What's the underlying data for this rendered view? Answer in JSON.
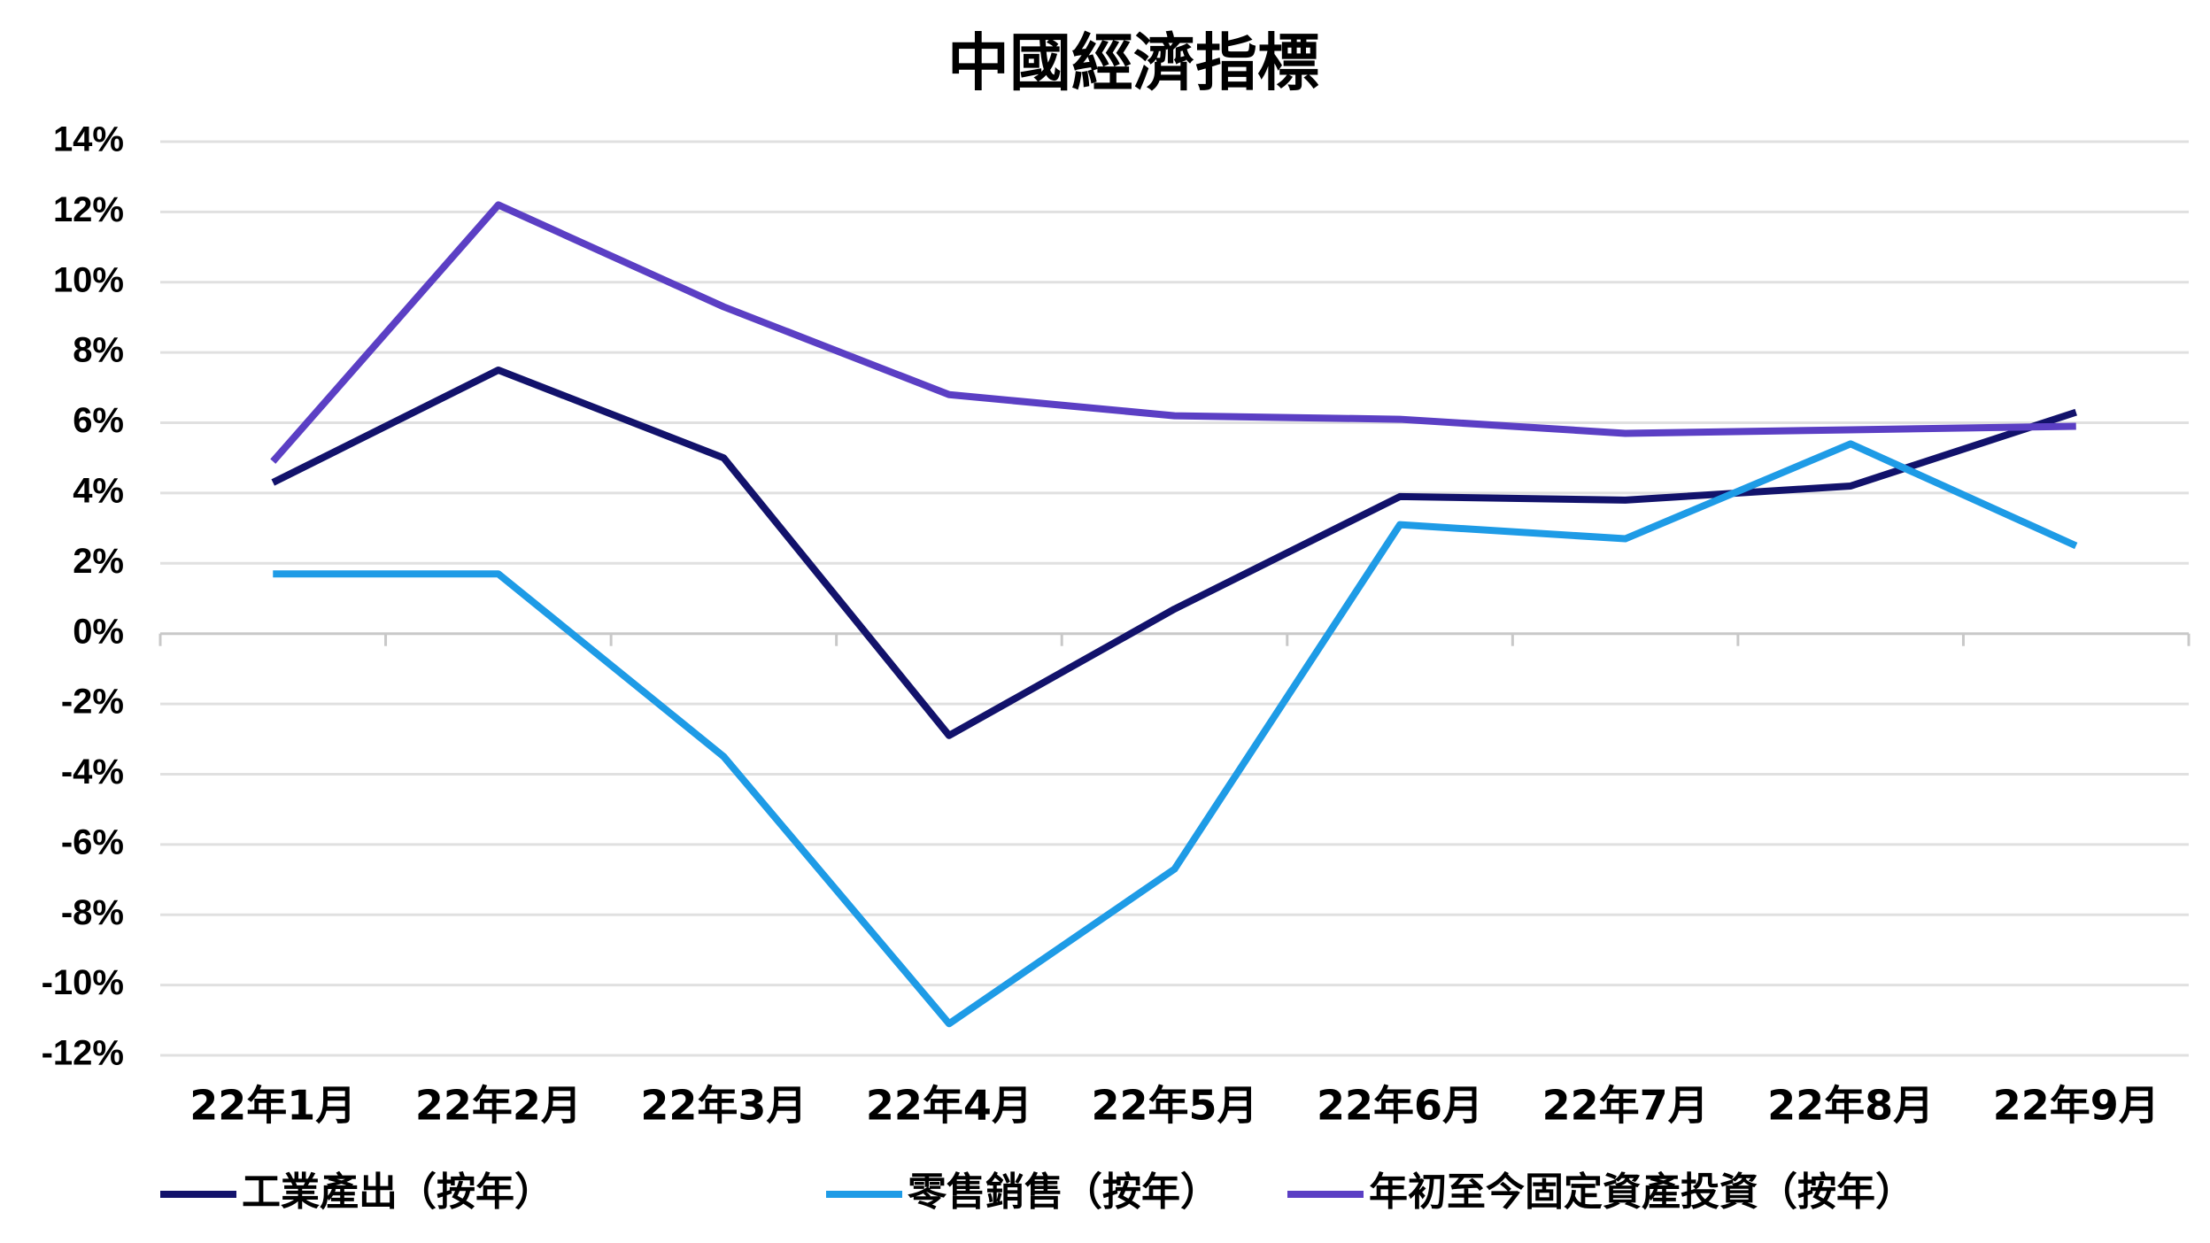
{
  "chart_data": {
    "type": "line",
    "title": "中國經濟指標",
    "categories": [
      "22年1月",
      "22年2月",
      "22年3月",
      "22年4月",
      "22年5月",
      "22年6月",
      "22年7月",
      "22年8月",
      "22年9月"
    ],
    "series": [
      {
        "name": "工業產出（按年）",
        "color": "#12126b",
        "values": [
          4.3,
          7.5,
          5.0,
          -2.9,
          0.7,
          3.9,
          3.8,
          4.2,
          6.3
        ]
      },
      {
        "name": "零售銷售（按年）",
        "color": "#1e9be6",
        "values": [
          1.7,
          1.7,
          -3.5,
          -11.1,
          -6.7,
          3.1,
          2.7,
          5.4,
          2.5
        ]
      },
      {
        "name": "年初至今固定資產投資（按年）",
        "color": "#5b3fc4",
        "values": [
          4.9,
          12.2,
          9.3,
          6.8,
          6.2,
          6.1,
          5.7,
          5.8,
          5.9
        ]
      }
    ],
    "ylim": [
      -12,
      14
    ],
    "yticks": [
      {
        "value": -12,
        "label": "-12%"
      },
      {
        "value": -10,
        "label": "-10%"
      },
      {
        "value": -8,
        "label": "-8%"
      },
      {
        "value": -6,
        "label": "-6%"
      },
      {
        "value": -4,
        "label": "-4%"
      },
      {
        "value": -2,
        "label": "-2%"
      },
      {
        "value": 0,
        "label": "0%"
      },
      {
        "value": 2,
        "label": "2%"
      },
      {
        "value": 4,
        "label": "4%"
      },
      {
        "value": 6,
        "label": "6%"
      },
      {
        "value": 8,
        "label": "8%"
      },
      {
        "value": 10,
        "label": "10%"
      },
      {
        "value": 12,
        "label": "12%"
      },
      {
        "value": 14,
        "label": "14%"
      }
    ],
    "grid": true
  }
}
